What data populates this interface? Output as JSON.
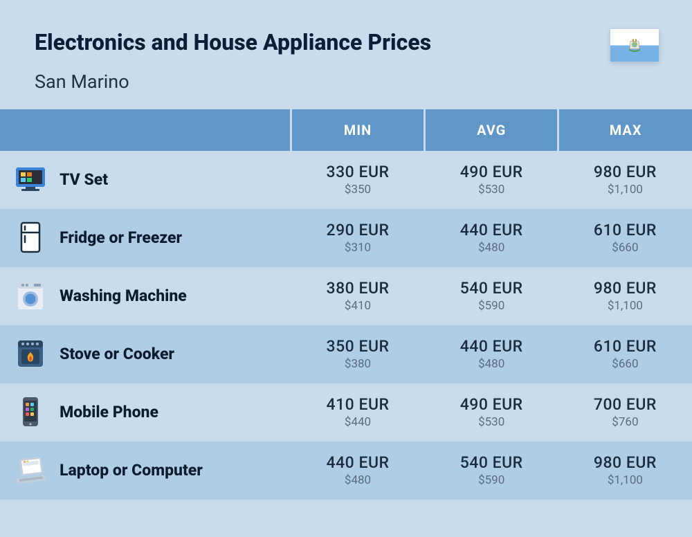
{
  "header": {
    "title": "Electronics and House Appliance Prices",
    "subtitle": "San Marino"
  },
  "flag": {
    "top_color": "#ffffff",
    "bottom_color": "#78b1e6",
    "emblem_color": "#4e9b4a"
  },
  "columns": {
    "min": "MIN",
    "avg": "AVG",
    "max": "MAX"
  },
  "colors": {
    "page_bg": "#c8dcee",
    "header_bg": "#6097c8",
    "row_even": "#c8dcee",
    "row_odd": "#b0cde6",
    "title_text": "#0a1f33",
    "price_main": "#1a2d3f",
    "price_sub": "#5a6d7d"
  },
  "typography": {
    "title_fontsize": 32,
    "subtitle_fontsize": 27,
    "header_fontsize": 20,
    "name_fontsize": 23,
    "price_main_fontsize": 23,
    "price_sub_fontsize": 17
  },
  "table": {
    "type": "table",
    "icon_col_width": 80,
    "name_col_width": 340,
    "val_col_width": 193
  },
  "rows": [
    {
      "icon": "tv-icon",
      "name": "TV Set",
      "min_eur": "330 EUR",
      "min_usd": "$350",
      "avg_eur": "490 EUR",
      "avg_usd": "$530",
      "max_eur": "980 EUR",
      "max_usd": "$1,100"
    },
    {
      "icon": "fridge-icon",
      "name": "Fridge or Freezer",
      "min_eur": "290 EUR",
      "min_usd": "$310",
      "avg_eur": "440 EUR",
      "avg_usd": "$480",
      "max_eur": "610 EUR",
      "max_usd": "$660"
    },
    {
      "icon": "washing-machine-icon",
      "name": "Washing Machine",
      "min_eur": "380 EUR",
      "min_usd": "$410",
      "avg_eur": "540 EUR",
      "avg_usd": "$590",
      "max_eur": "980 EUR",
      "max_usd": "$1,100"
    },
    {
      "icon": "stove-icon",
      "name": "Stove or Cooker",
      "min_eur": "350 EUR",
      "min_usd": "$380",
      "avg_eur": "440 EUR",
      "avg_usd": "$480",
      "max_eur": "610 EUR",
      "max_usd": "$660"
    },
    {
      "icon": "mobile-phone-icon",
      "name": "Mobile Phone",
      "min_eur": "410 EUR",
      "min_usd": "$440",
      "avg_eur": "490 EUR",
      "avg_usd": "$530",
      "max_eur": "700 EUR",
      "max_usd": "$760"
    },
    {
      "icon": "laptop-icon",
      "name": "Laptop or Computer",
      "min_eur": "440 EUR",
      "min_usd": "$480",
      "avg_eur": "540 EUR",
      "avg_usd": "$590",
      "max_eur": "980 EUR",
      "max_usd": "$1,100"
    }
  ],
  "icons": {
    "tv-icon": {
      "body": "#3b83d8",
      "screen": "#2a2f3a",
      "tiles": [
        "#f2c94c",
        "#e67e22",
        "#56ccf2",
        "#2ecc71"
      ]
    },
    "fridge-icon": {
      "outline": "#1a2d3f",
      "fill": "#ffffff"
    },
    "washing-machine-icon": {
      "body": "#e9eef4",
      "panel": "#cfd9e4",
      "drum": "#5a8fd6",
      "ring": "#9bbde0"
    },
    "stove-icon": {
      "body": "#3b5f85",
      "panel": "#2a4560",
      "flame_outer": "#f5a623",
      "flame_inner": "#e04e2a"
    },
    "mobile-phone-icon": {
      "body": "#4c5a6a",
      "screen": "#2f3a47",
      "apps": [
        "#f2994a",
        "#56ccf2",
        "#bb6bd9",
        "#27ae60",
        "#f25c5c",
        "#f2c94c"
      ]
    },
    "laptop-icon": {
      "body": "#c5cfdb",
      "screen": "#ffffff",
      "window": "#e2e8f0",
      "accent1": "#f2994a",
      "accent2": "#f2c94c"
    }
  }
}
